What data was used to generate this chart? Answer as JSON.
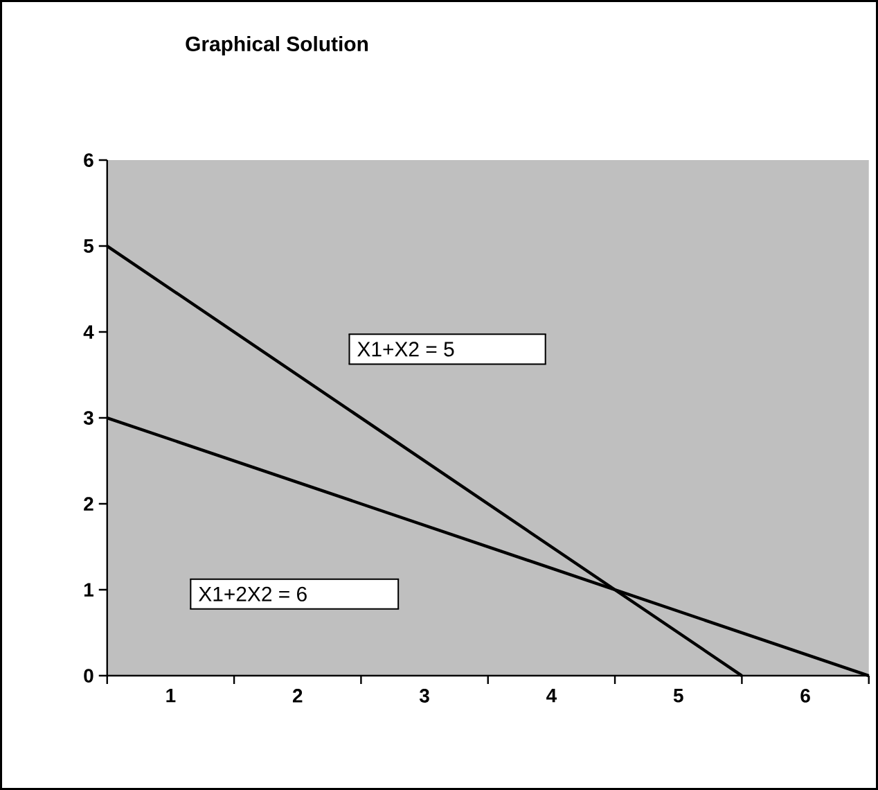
{
  "chart_data": {
    "type": "line",
    "title": "Graphical Solution",
    "xlim": [
      0,
      6
    ],
    "xticks": [
      {
        "value": 0,
        "label": null
      },
      {
        "value": 0.5,
        "label": "1"
      },
      {
        "value": 1,
        "label": null
      },
      {
        "value": 1.5,
        "label": "2"
      },
      {
        "value": 2,
        "label": null
      },
      {
        "value": 2.5,
        "label": "3"
      },
      {
        "value": 3,
        "label": null
      },
      {
        "value": 3.5,
        "label": "4"
      },
      {
        "value": 4,
        "label": null
      },
      {
        "value": 4.5,
        "label": "5"
      },
      {
        "value": 5,
        "label": null
      },
      {
        "value": 5.5,
        "label": "6"
      },
      {
        "value": 6,
        "label": null
      }
    ],
    "ylim": [
      0,
      6
    ],
    "yticks": [
      0,
      1,
      2,
      3,
      4,
      5,
      6
    ],
    "legend": "center",
    "series": [
      {
        "name": "X1+X2 = 5",
        "color": "#000000",
        "x": [
          0,
          5
        ],
        "values": [
          5,
          0
        ]
      },
      {
        "name": "X1+2X2 = 6",
        "color": "#000000",
        "x": [
          0,
          6
        ],
        "values": [
          3,
          0
        ]
      }
    ]
  }
}
